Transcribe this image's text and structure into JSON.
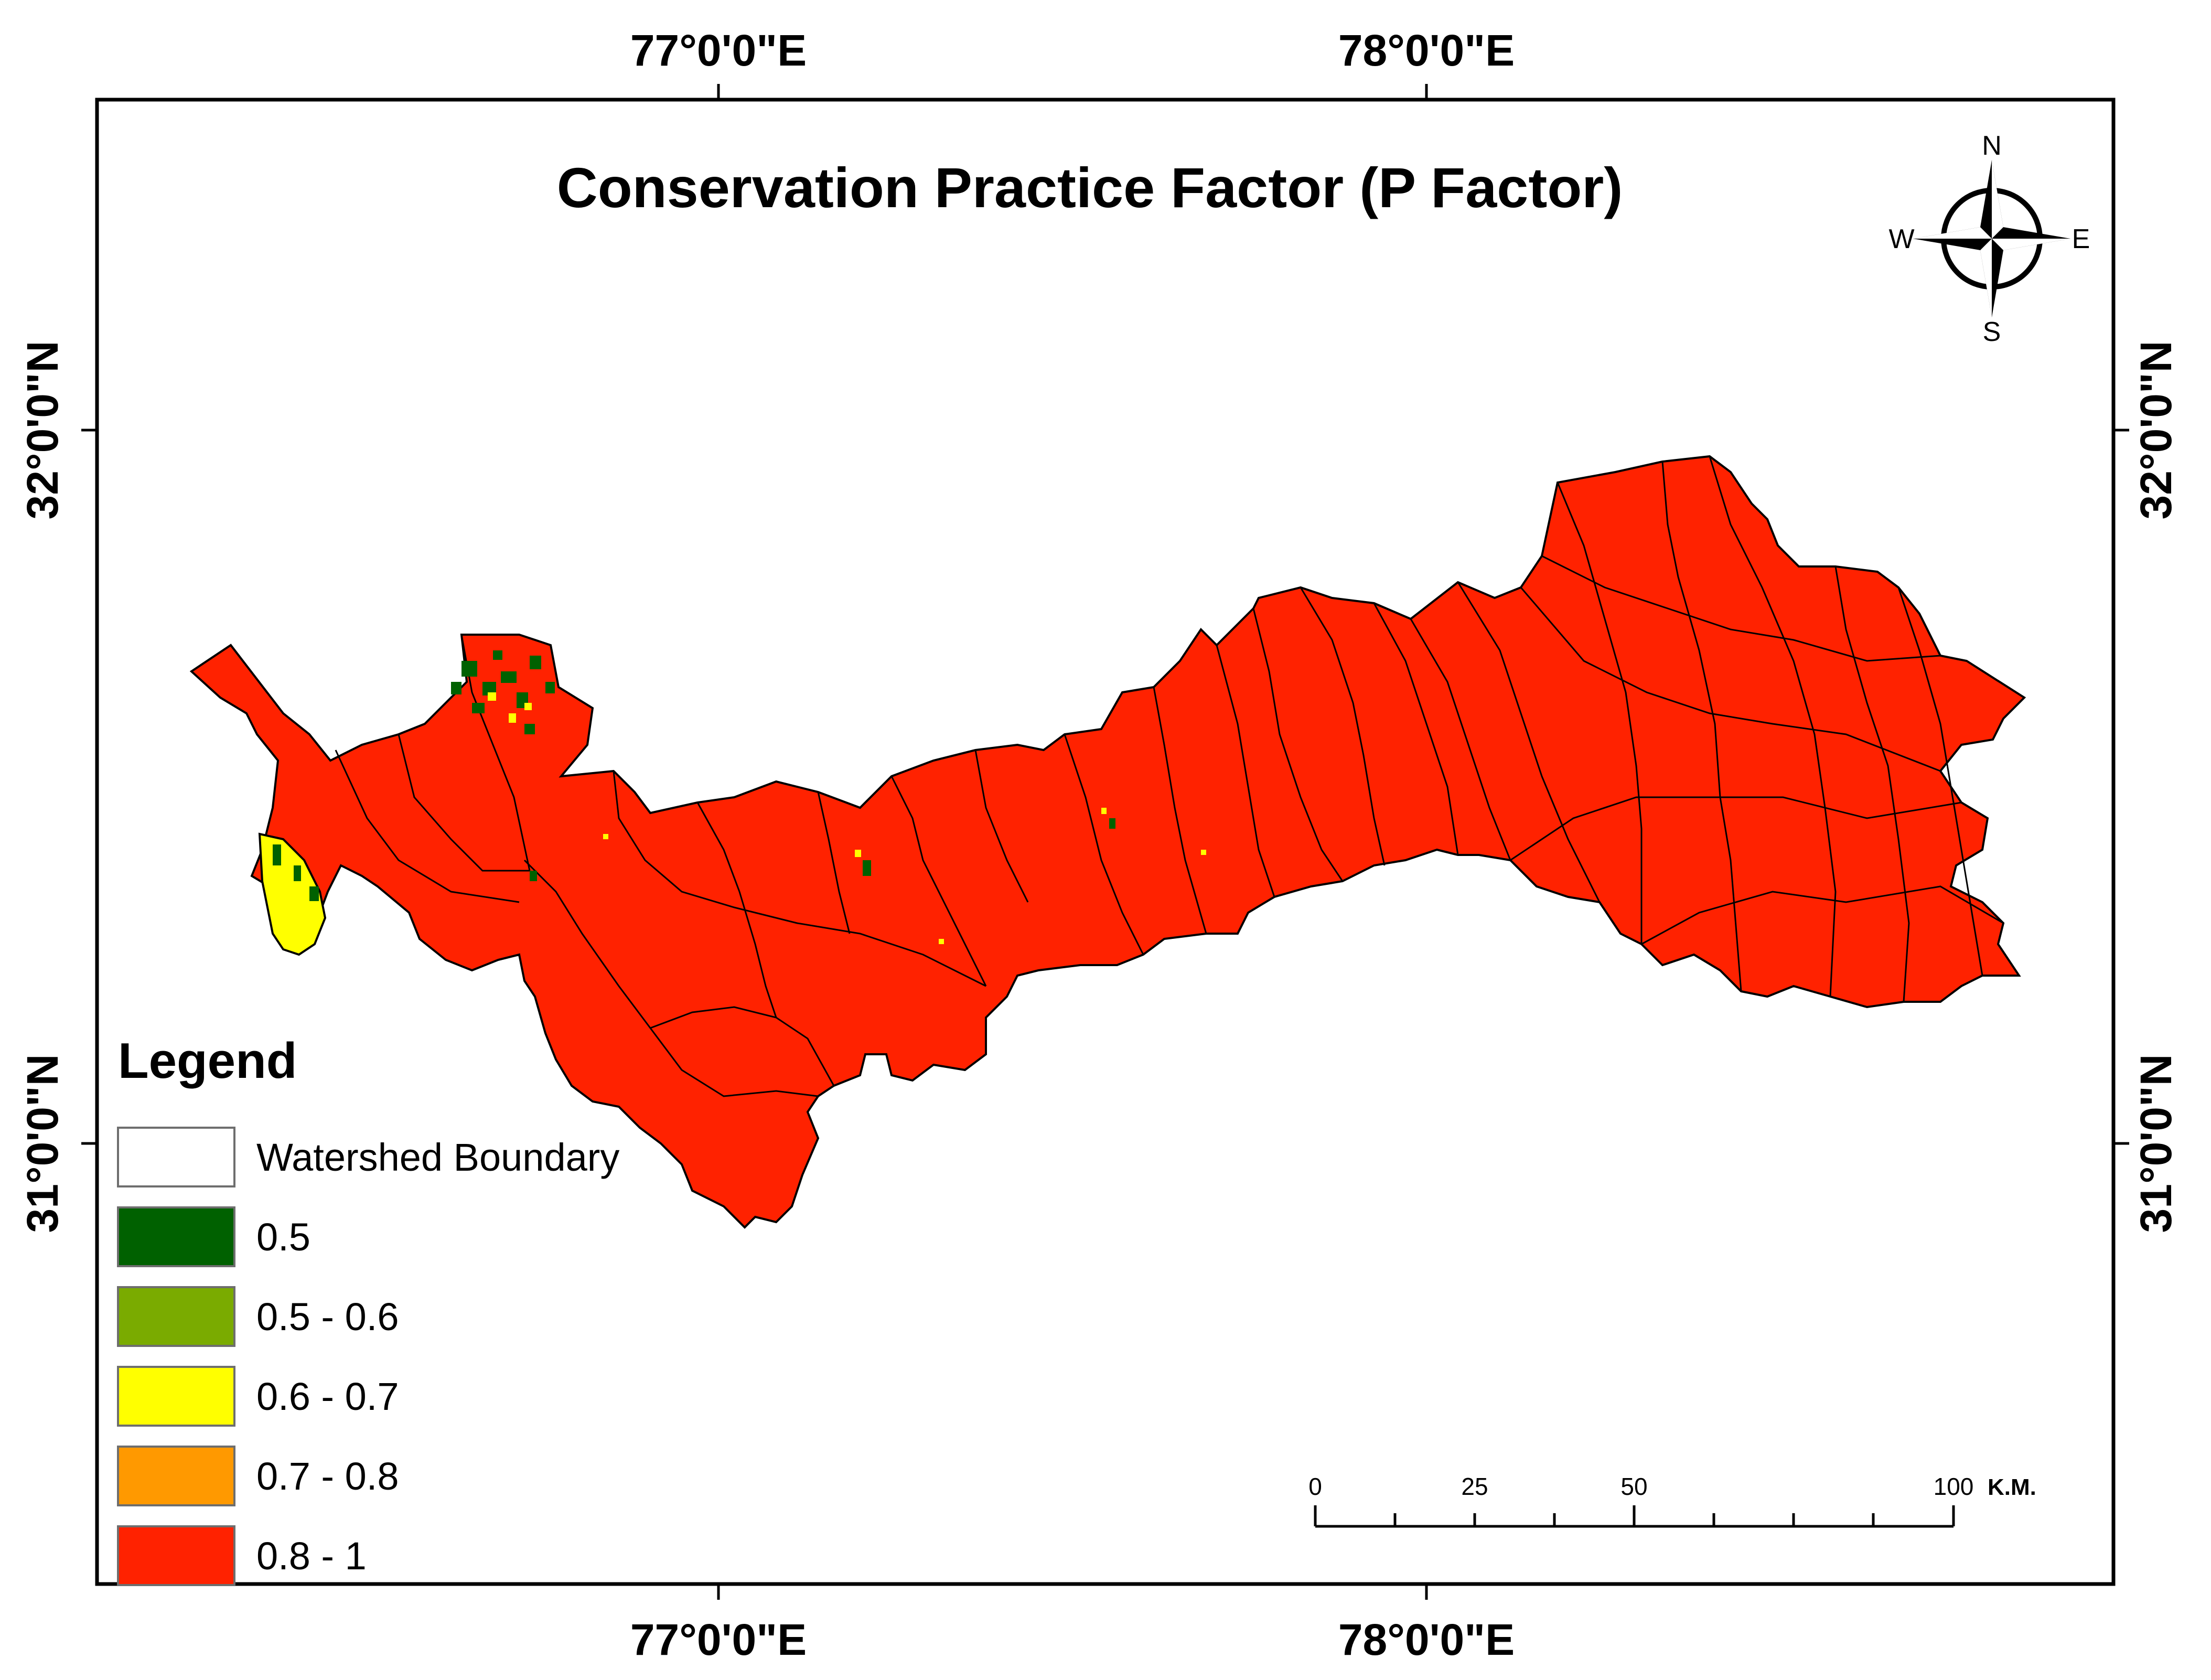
{
  "title": "Conservation Practice Factor (P Factor)",
  "graticule": {
    "lon_ticks": [
      "77°0'0\"E",
      "78°0'0\"E"
    ],
    "lat_ticks": [
      "32°0'0\"N",
      "31°0'0\"N"
    ]
  },
  "north_arrow": {
    "n": "N",
    "s": "S",
    "e": "E",
    "w": "W"
  },
  "legend": {
    "title": "Legend",
    "items": [
      {
        "label": "Watershed Boundary",
        "color": "#ffffff"
      },
      {
        "label": "0.5",
        "color": "#006100"
      },
      {
        "label": "0.5 - 0.6",
        "color": "#7aab00"
      },
      {
        "label": "0.6 - 0.7",
        "color": "#ffff00"
      },
      {
        "label": "0.7 - 0.8",
        "color": "#ff9900"
      },
      {
        "label": "0.8 - 1",
        "color": "#ff2200"
      }
    ]
  },
  "scale_bar": {
    "ticks": [
      "0",
      "25",
      "50",
      "100"
    ],
    "unit": "K.M."
  }
}
